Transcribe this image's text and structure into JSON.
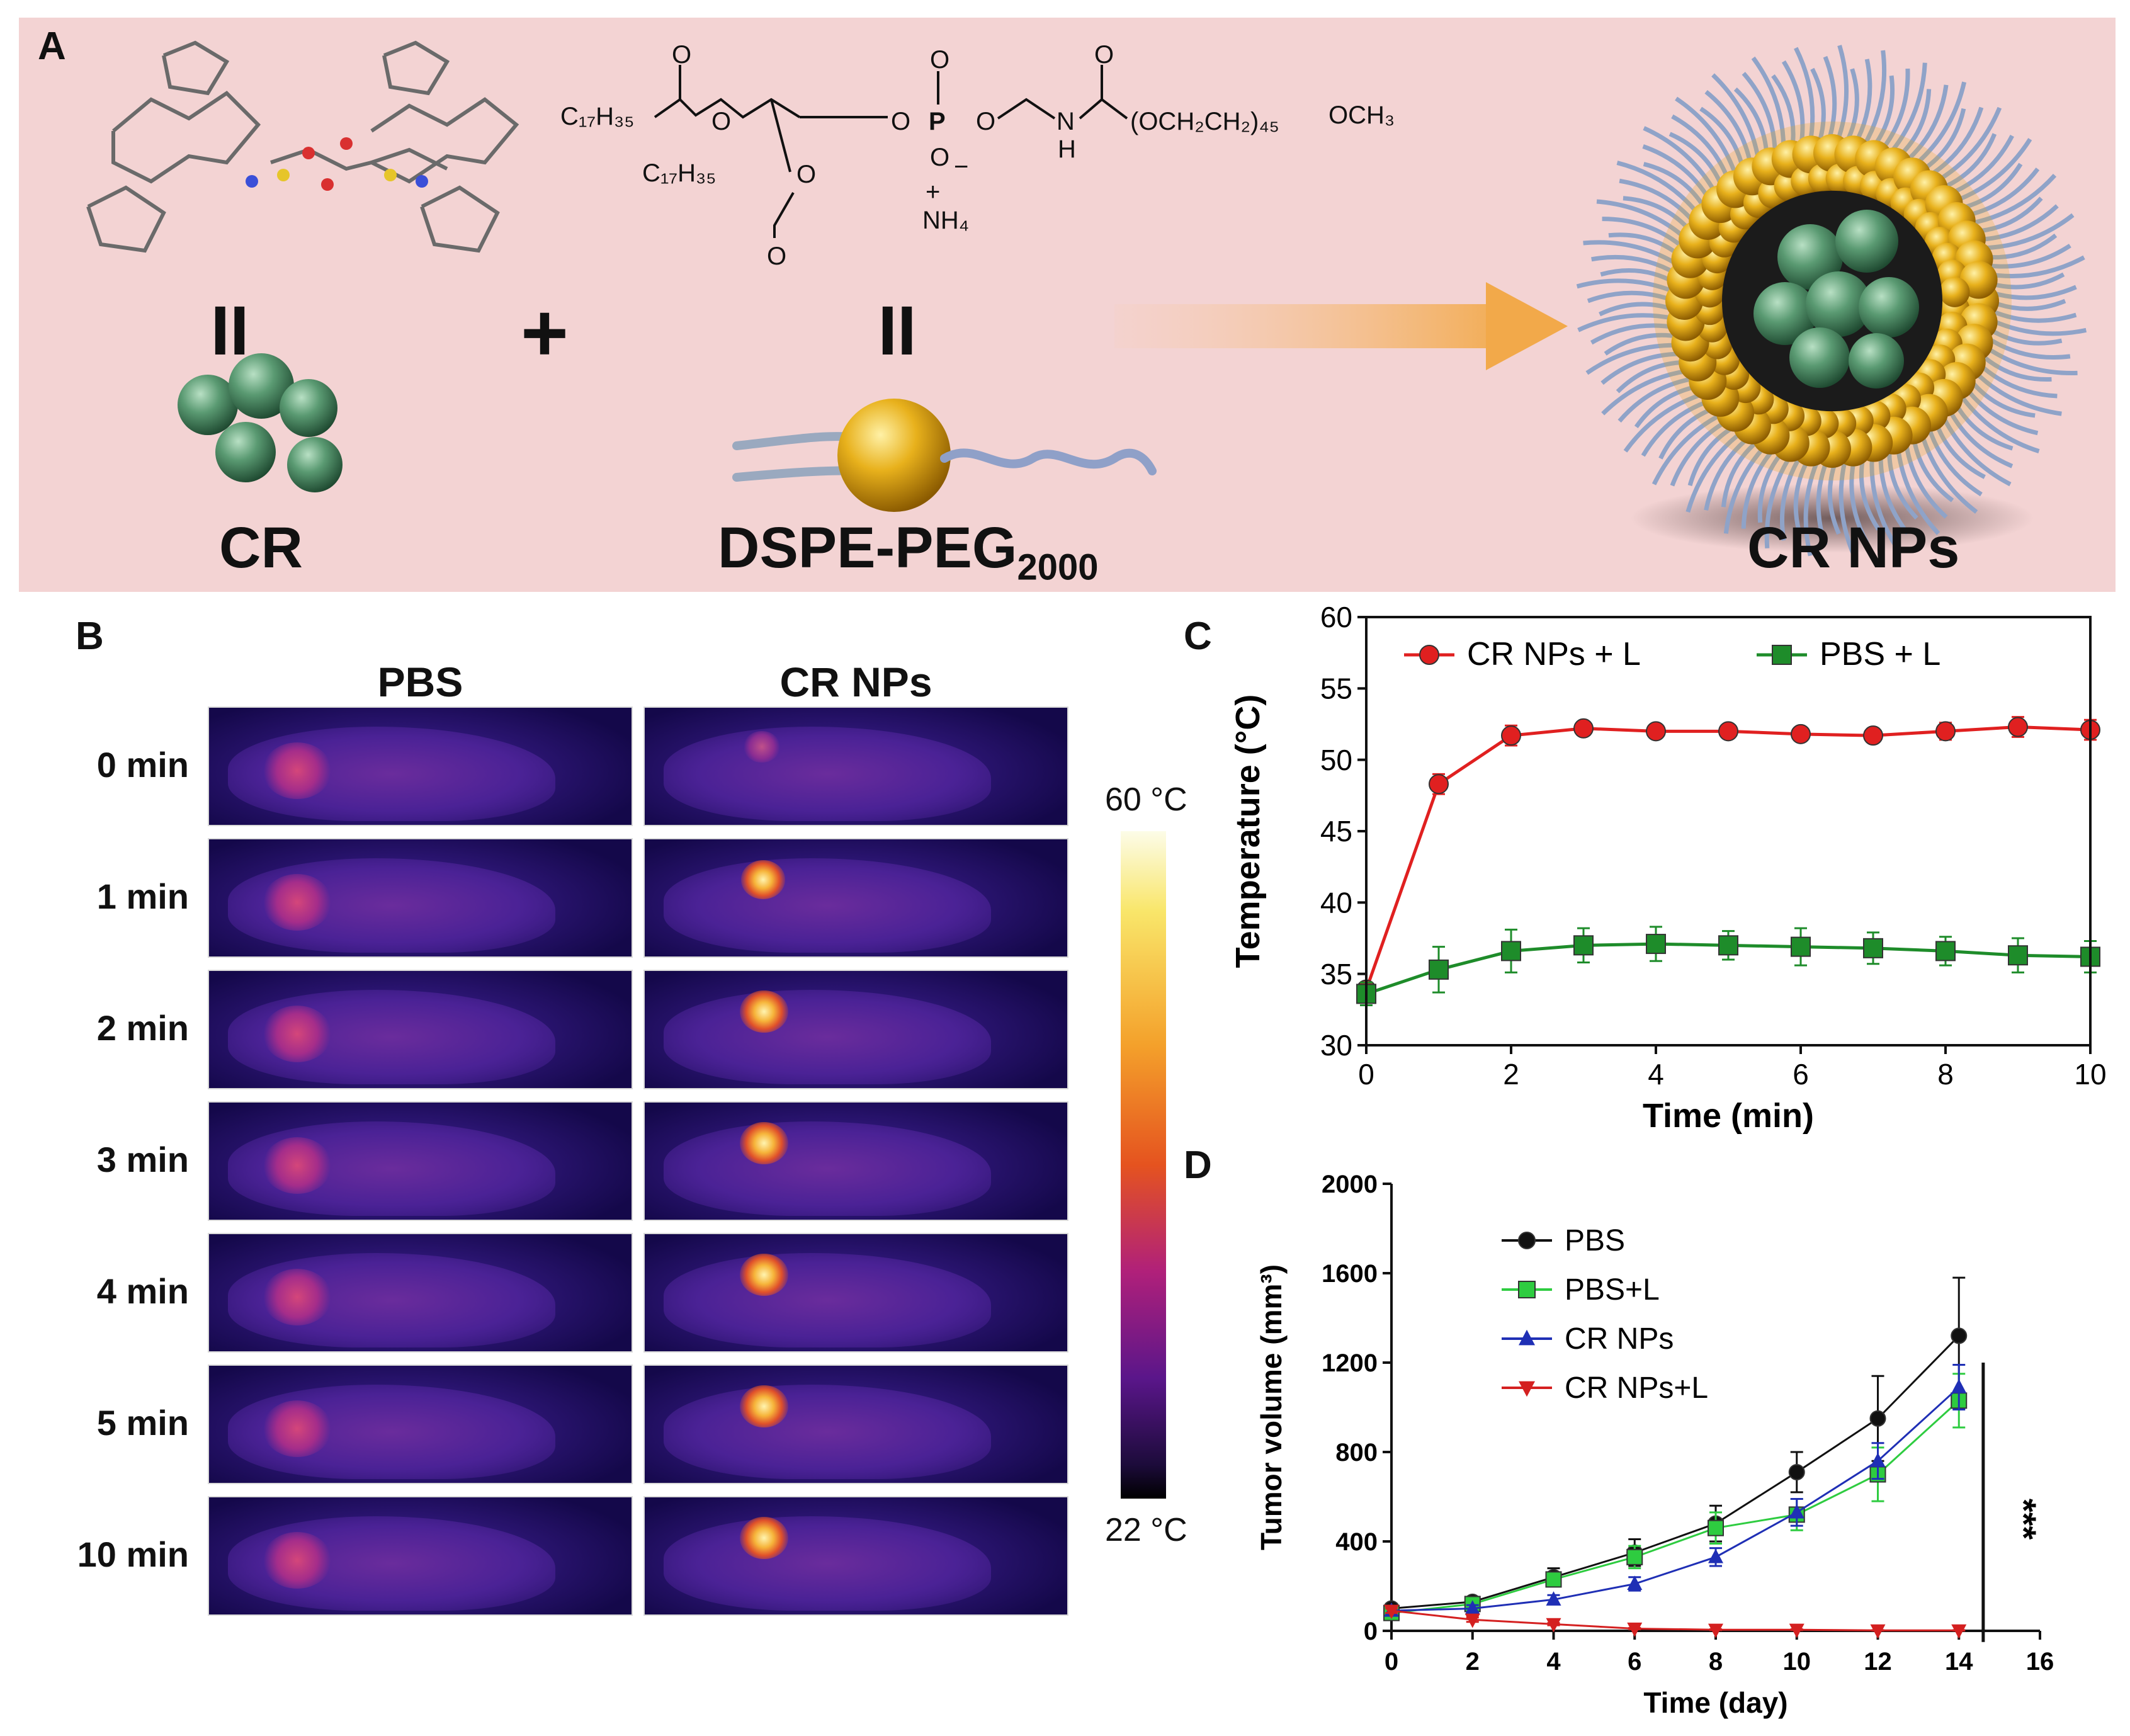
{
  "panels": {
    "a": "A",
    "b": "B",
    "c": "C",
    "d": "D"
  },
  "panelA": {
    "cr_label": "CR",
    "dspe_label": "DSPE-PEG",
    "dspe_sub": "2000",
    "nps_label": "CR NPs",
    "plus": "+",
    "equals": "II",
    "chem": {
      "c17h35_a": "C₁₇H₃₅",
      "c17h35_b": "C₁₇H₃₅",
      "o": "O",
      "p": "P",
      "n": "N",
      "h": "H",
      "o_minus": "O",
      "minus": "−",
      "plus": "+",
      "nh4": "NH₄",
      "peg": "(OCH₂CH₂)₄₅",
      "och3": "OCH₃"
    },
    "colors": {
      "bg": "#f3d3d3",
      "arrow": "#f2a94a",
      "sphere_green": "#5a9a72",
      "lipid_gold": "#e8b11c"
    }
  },
  "panelB": {
    "col_headers": [
      "PBS",
      "CR NPs"
    ],
    "rows": [
      "0 min",
      "1 min",
      "2 min",
      "3 min",
      "4 min",
      "5 min",
      "10 min"
    ],
    "scale_max": "60 °C",
    "scale_min": "22 °C"
  },
  "chart_data": [
    {
      "id": "C",
      "type": "line",
      "title": "",
      "xlabel": "Time (min)",
      "ylabel": "Temperature (°C)",
      "xlim": [
        0,
        10
      ],
      "ylim": [
        30,
        60
      ],
      "xticks": [
        0,
        2,
        4,
        6,
        8,
        10
      ],
      "yticks": [
        30,
        35,
        40,
        45,
        50,
        55,
        60
      ],
      "legend": "top",
      "series": [
        {
          "name": "CR NPs + L",
          "color": "#e02020",
          "marker": "circle",
          "x": [
            0,
            1,
            2,
            3,
            4,
            5,
            6,
            7,
            8,
            9,
            10
          ],
          "values": [
            33.9,
            48.3,
            51.7,
            52.2,
            52.0,
            52.0,
            51.8,
            51.7,
            52.0,
            52.3,
            52.1
          ],
          "err": [
            0.5,
            0.7,
            0.7,
            0.3,
            0.3,
            0.3,
            0.3,
            0.3,
            0.6,
            0.7,
            0.7
          ]
        },
        {
          "name": "PBS + L",
          "color": "#1e8c2a",
          "marker": "square",
          "x": [
            0,
            1,
            2,
            3,
            4,
            5,
            6,
            7,
            8,
            9,
            10
          ],
          "values": [
            33.6,
            35.3,
            36.6,
            37.0,
            37.1,
            37.0,
            36.9,
            36.8,
            36.6,
            36.3,
            36.2
          ],
          "err": [
            0.8,
            1.6,
            1.5,
            1.2,
            1.2,
            1.0,
            1.3,
            1.1,
            1.0,
            1.2,
            1.1
          ]
        }
      ]
    },
    {
      "id": "D",
      "type": "line",
      "title": "",
      "xlabel": "Time (day)",
      "ylabel": "Tumor volume (mm³)",
      "xlim": [
        0,
        16
      ],
      "ylim": [
        0,
        2000
      ],
      "xticks": [
        0,
        2,
        4,
        6,
        8,
        10,
        12,
        14,
        16
      ],
      "yticks": [
        0,
        400,
        800,
        1200,
        1600,
        2000
      ],
      "legend": "top-left",
      "significance": "***",
      "series": [
        {
          "name": "PBS",
          "color": "#111111",
          "marker": "circle",
          "x": [
            0,
            2,
            4,
            6,
            8,
            10,
            12,
            14
          ],
          "values": [
            100,
            130,
            240,
            350,
            480,
            710,
            950,
            1320
          ],
          "err": [
            20,
            20,
            40,
            60,
            80,
            90,
            190,
            260
          ]
        },
        {
          "name": "PBS+L",
          "color": "#2ecc40",
          "marker": "square",
          "x": [
            0,
            2,
            4,
            6,
            8,
            10,
            12,
            14
          ],
          "values": [
            80,
            120,
            230,
            330,
            460,
            520,
            700,
            1030
          ],
          "err": [
            20,
            20,
            30,
            50,
            70,
            70,
            120,
            120
          ]
        },
        {
          "name": "CR NPs",
          "color": "#1f2fb5",
          "marker": "triangle-up",
          "x": [
            0,
            2,
            4,
            6,
            8,
            10,
            12,
            14
          ],
          "values": [
            90,
            100,
            140,
            210,
            330,
            530,
            760,
            1090
          ],
          "err": [
            15,
            15,
            20,
            30,
            40,
            60,
            80,
            100
          ]
        },
        {
          "name": "CR NPs+L",
          "color": "#d42020",
          "marker": "triangle-down",
          "x": [
            0,
            2,
            4,
            6,
            8,
            10,
            12,
            14
          ],
          "values": [
            90,
            50,
            30,
            10,
            5,
            5,
            2,
            2
          ],
          "err": [
            10,
            10,
            5,
            3,
            2,
            2,
            1,
            1
          ]
        }
      ]
    }
  ]
}
